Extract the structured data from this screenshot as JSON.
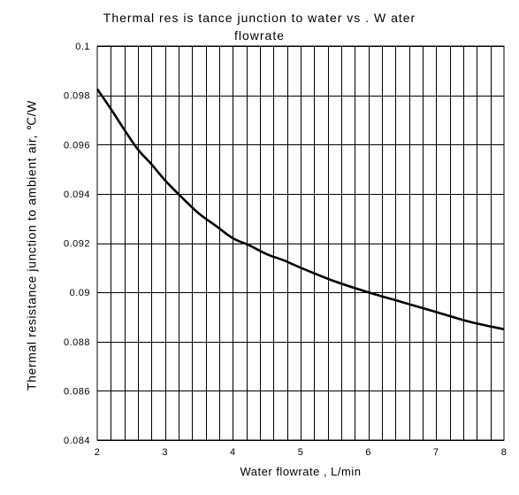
{
  "chart_data": {
    "type": "line",
    "title_line1": "Thermal res is tance junction  to water vs . W ater",
    "title_line2": "flowrate",
    "xlabel": "Water flowrate  ,  L/min",
    "ylabel": "Thermal resistance junction to ambient air,  ℃/W",
    "xlim": [
      2,
      8
    ],
    "ylim": [
      0.084,
      0.1
    ],
    "x_ticks": [
      {
        "value": 2,
        "label": "2"
      },
      {
        "value": 3,
        "label": "3"
      },
      {
        "value": 4,
        "label": "4"
      },
      {
        "value": 5,
        "label": "5"
      },
      {
        "value": 6,
        "label": "6"
      },
      {
        "value": 7,
        "label": "7"
      },
      {
        "value": 8,
        "label": "8"
      }
    ],
    "y_ticks": [
      {
        "value": 0.084,
        "label": "0.084"
      },
      {
        "value": 0.086,
        "label": "0.086"
      },
      {
        "value": 0.088,
        "label": "0.088"
      },
      {
        "value": 0.09,
        "label": "0.09"
      },
      {
        "value": 0.092,
        "label": "0.092"
      },
      {
        "value": 0.094,
        "label": "0.094"
      },
      {
        "value": 0.096,
        "label": "0.096"
      },
      {
        "value": 0.098,
        "label": "0.098"
      },
      {
        "value": 0.1,
        "label": "0.1"
      }
    ],
    "minor_x_step": 0.2,
    "grid": true,
    "line_color": "#000000",
    "series": [
      {
        "x": [
          2.0,
          2.2,
          2.4,
          2.6,
          2.8,
          3.0,
          3.25,
          3.5,
          3.75,
          4.0,
          4.25,
          4.5,
          4.75,
          5.0,
          5.5,
          6.0,
          6.5,
          7.0,
          7.5,
          8.0
        ],
        "y": [
          0.09825,
          0.09745,
          0.0966,
          0.0958,
          0.0952,
          0.09455,
          0.09385,
          0.0932,
          0.0927,
          0.0922,
          0.0919,
          0.09155,
          0.0913,
          0.091,
          0.09045,
          0.09,
          0.0896,
          0.0892,
          0.0888,
          0.0885
        ]
      }
    ]
  }
}
